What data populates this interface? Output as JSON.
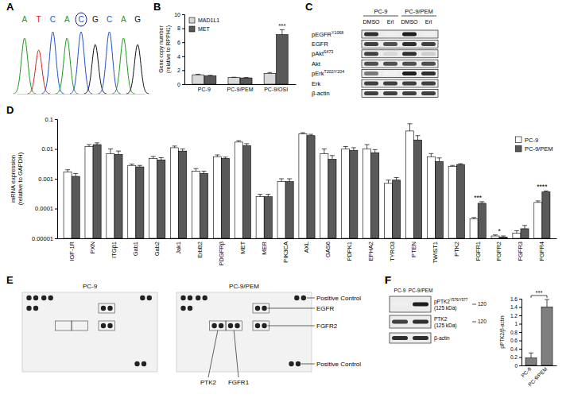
{
  "panels": {
    "A": {
      "letter": "A",
      "type": "chromatogram",
      "bases": [
        "A",
        "T",
        "C",
        "A",
        "C",
        "G",
        "C",
        "A",
        "G"
      ],
      "highlight": 4
    },
    "C": {
      "letter": "C",
      "type": "blot",
      "groups": [
        {
          "label": "PC-9",
          "lanes": [
            "DMSO",
            "Erl"
          ]
        },
        {
          "label": "PC-9/PEM",
          "lanes": [
            "DMSO",
            "Erl"
          ]
        }
      ],
      "rows": [
        {
          "label": "pEGFR",
          "sup": "Y1068",
          "intensity": [
            0.85,
            0.12,
            0.9,
            0.12
          ]
        },
        {
          "label": "EGFR",
          "intensity": [
            0.8,
            0.75,
            0.85,
            0.8
          ]
        },
        {
          "label": "pAkt",
          "sup": "S473",
          "intensity": [
            0.8,
            0.25,
            0.85,
            0.3
          ]
        },
        {
          "label": "Akt",
          "intensity": [
            0.75,
            0.75,
            0.75,
            0.75
          ]
        },
        {
          "label": "pErk",
          "sup": "T202/Y204",
          "intensity": [
            0.6,
            0.1,
            0.9,
            0.85
          ]
        },
        {
          "label": "Erk",
          "intensity": [
            0.8,
            0.8,
            0.8,
            0.8
          ]
        },
        {
          "label": "β-actin",
          "intensity": [
            0.8,
            0.8,
            0.8,
            0.8
          ]
        }
      ]
    },
    "E": {
      "letter": "E",
      "type": "array",
      "membranes": [
        "PC-9",
        "PC-9/PEM"
      ],
      "callouts": [
        {
          "label": "Positive Control",
          "present": [
            true,
            true
          ]
        },
        {
          "label": "EGFR",
          "present": [
            true,
            true
          ]
        },
        {
          "label": "FGFR2",
          "present": [
            true,
            true
          ]
        },
        {
          "label": "PTK2",
          "present": [
            false,
            true
          ]
        },
        {
          "label": "FGFR1",
          "present": [
            false,
            true
          ]
        },
        {
          "label": "Positive Control",
          "present": [
            true,
            true
          ]
        }
      ]
    },
    "F": {
      "letter": "F",
      "type": "blot",
      "groups": [
        {
          "label": "PC-9"
        },
        {
          "label": "PC-9/PEM"
        }
      ],
      "rows": [
        {
          "label": "pPTK2",
          "sup": "Y576/Y577",
          "sub": "(125 kDa)",
          "ladder": 120,
          "intensity": [
            0.12,
            0.9
          ]
        },
        {
          "label": "PTK2",
          "sub": "(125 kDa)",
          "ladder": 120,
          "intensity": [
            0.8,
            0.85
          ]
        },
        {
          "label": "β-actin",
          "intensity": [
            0.85,
            0.85
          ]
        }
      ]
    }
  },
  "chart_data": [
    {
      "panel": "B",
      "type": "bar",
      "ylabel": "Gene copy number (relative to RPPH1)",
      "categories": [
        "PC-9",
        "PC-9/PEM",
        "PC-9/OSI"
      ],
      "series": [
        {
          "name": "MAD1L1",
          "color": "#d9d9d9",
          "values": [
            1.35,
            0.95,
            1.55
          ],
          "errors": [
            0.08,
            0.05,
            0.12
          ]
        },
        {
          "name": "MET",
          "color": "#595959",
          "values": [
            1.2,
            0.9,
            7.1
          ],
          "errors": [
            0.07,
            0.05,
            0.7
          ]
        }
      ],
      "ylim": [
        0,
        10
      ],
      "yticks": [
        0,
        2,
        4,
        6,
        8,
        10
      ],
      "legend": "upper left",
      "annotations": [
        {
          "text": "***",
          "category": "PC-9/OSI",
          "series": "MET"
        }
      ]
    },
    {
      "panel": "D",
      "type": "bar",
      "ylabel": "mRNA expression (relative to GAPDH)",
      "log": "y",
      "categories": [
        "IGF-1R",
        "PXN",
        "ITGβ1",
        "Gab1",
        "Gab2",
        "Jak1",
        "ErbB2",
        "PDGFRβ",
        "MET",
        "MER",
        "PIK3CA",
        "AXL",
        "GAS6",
        "PDPK1",
        "EPHA2",
        "TYRO3",
        "PTEN",
        "TWIST1",
        "PTK2",
        "FGFR1",
        "FGFR2",
        "FGFR3",
        "FGFR4"
      ],
      "series": [
        {
          "name": "PC-9",
          "color": "#ffffff",
          "values": [
            0.0017,
            0.012,
            0.007,
            0.0028,
            0.0048,
            0.011,
            0.0018,
            0.0055,
            0.017,
            0.00025,
            0.0008,
            0.032,
            0.007,
            0.01,
            0.01,
            0.0007,
            0.04,
            0.0055,
            0.0026,
            4.5e-05,
            1.2e-05,
            1.5e-05,
            0.00016
          ],
          "errors": [
            0.0003,
            0.002,
            0.003,
            0.0003,
            0.0008,
            0.0015,
            0.0004,
            0.0008,
            0.002,
            5e-05,
            0.0002,
            0.003,
            0.003,
            0.002,
            0.004,
            0.0002,
            0.03,
            0.0015,
            0.0002,
            5e-06,
            1e-06,
            3e-06,
            2e-05
          ]
        },
        {
          "name": "PC-9/PEM",
          "color": "#595959",
          "values": [
            0.0012,
            0.014,
            0.0065,
            0.0025,
            0.0043,
            0.0085,
            0.0015,
            0.0048,
            0.013,
            0.00025,
            0.0008,
            0.028,
            0.0045,
            0.009,
            0.0075,
            0.0009,
            0.02,
            0.0038,
            0.003,
            0.00015,
            1.1e-05,
            2.1e-05,
            0.00036
          ],
          "errors": [
            0.0003,
            0.002,
            0.002,
            0.0003,
            0.0008,
            0.0015,
            0.0003,
            0.0005,
            0.002,
            5e-05,
            0.0002,
            0.003,
            0.0015,
            0.002,
            0.002,
            0.0002,
            0.008,
            0.0012,
            0.0002,
            2e-05,
            1e-06,
            6e-06,
            3e-05
          ]
        }
      ],
      "ylim": [
        1e-05,
        0.1
      ],
      "yticks": [
        1e-05,
        0.0001,
        0.001,
        0.01,
        0.1
      ],
      "legend": "upper right",
      "annotations": [
        {
          "text": "***",
          "category": "FGFR1"
        },
        {
          "text": "*",
          "category": "FGFR2"
        },
        {
          "text": "****",
          "category": "FGFR4"
        }
      ]
    },
    {
      "panel": "F",
      "type": "bar",
      "ylabel": "pPTK2/β-actin",
      "categories": [
        "PC-9",
        "PC-9/PEM"
      ],
      "values": [
        0.18,
        1.4
      ],
      "errors": [
        0.12,
        0.18
      ],
      "color": "#7f7f7f",
      "ylim": [
        0,
        1.6
      ],
      "yticks": [
        0,
        0.2,
        0.4,
        0.6,
        0.8,
        1,
        1.2,
        1.4,
        1.6
      ],
      "annotations": [
        {
          "text": "***"
        }
      ]
    }
  ]
}
